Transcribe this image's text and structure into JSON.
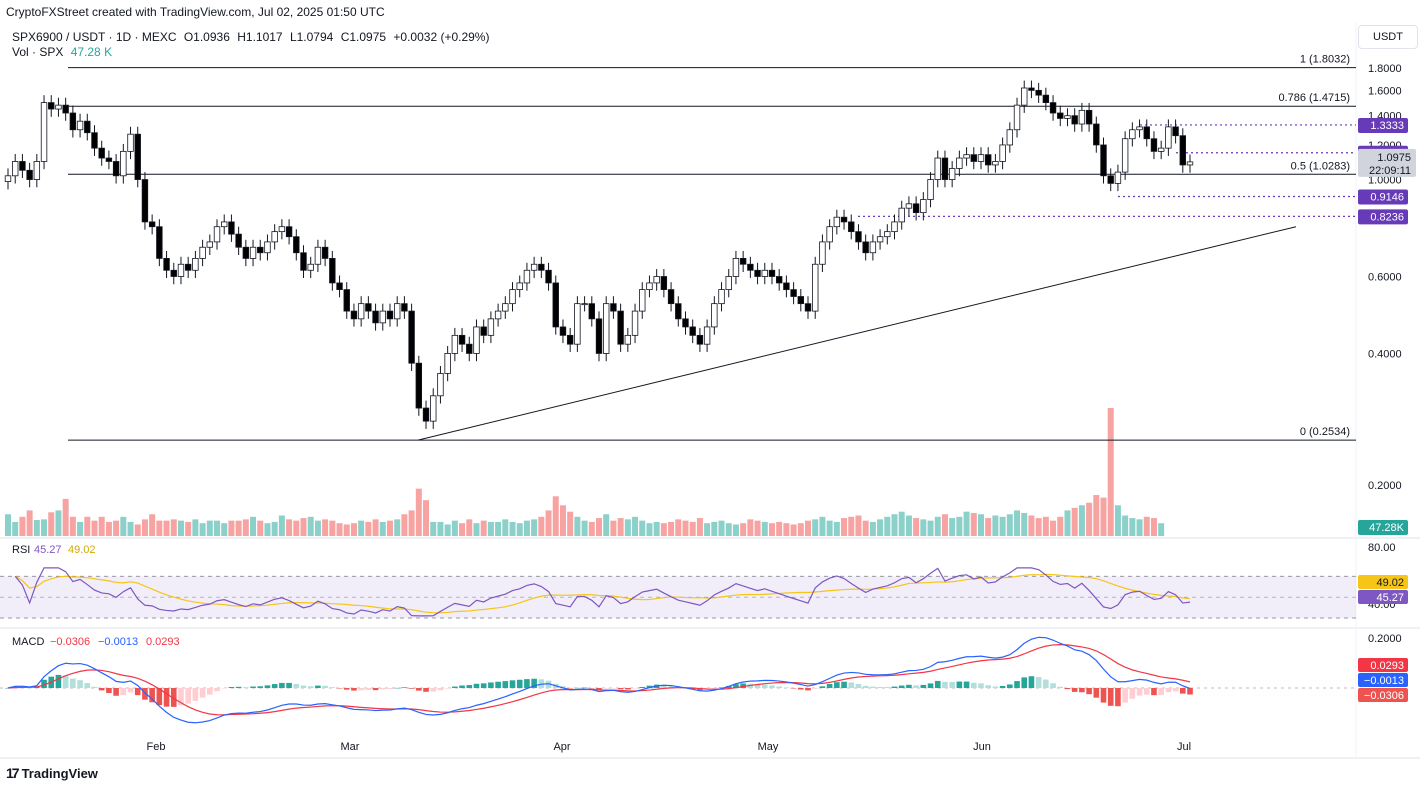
{
  "credit": "CryptoFXStreet created with TradingView.com, Jul 02, 2025 01:50 UTC",
  "symbol_line": {
    "symbol": "SPX6900 / USDT · 1D · MEXC",
    "open": "O1.0936",
    "high": "H1.1017",
    "low": "L1.0794",
    "close": "C1.0975",
    "change": "+0.0032 (+0.29%)"
  },
  "vol_line": {
    "label": "Vol · SPX",
    "value": "47.28 K"
  },
  "unit": "USDT",
  "brand": "TradingView",
  "colors": {
    "up": "#26a69a",
    "down": "#ef5350",
    "candle_up": "#ffffff",
    "candle_down": "#000000",
    "level": "#673ab7",
    "rsi": "#7e57c2",
    "rsi_ma": "#f5c518",
    "macd": "#2962ff",
    "signal": "#f23645"
  },
  "chart_data": [
    {
      "type": "candlestick",
      "title": "SPX6900 / USDT · 1D · MEXC",
      "y_ticks": [
        "1.8000",
        "1.6000",
        "1.4000",
        "1.2000",
        "1.0000",
        "0.6000",
        "0.4000",
        "0.2000"
      ],
      "x_ticks": [
        "Feb",
        "Mar",
        "Apr",
        "May",
        "Jun",
        "Jul"
      ],
      "fib_levels": [
        {
          "label": "1 (1.8032)",
          "value": 1.8032
        },
        {
          "label": "0.786 (1.4715)",
          "value": 1.4715
        },
        {
          "label": "0.5 (1.0283)",
          "value": 1.0283
        },
        {
          "label": "0 (0.2534)",
          "value": 0.2534
        }
      ],
      "price_markers": [
        "1.3333",
        "1.1516",
        "0.9146",
        "0.8236"
      ],
      "price_marker_values": [
        1.3333,
        1.1516,
        0.9146,
        0.8236
      ],
      "last_price": "1.0975",
      "countdown": "22:09:11",
      "trendline": [
        {
          "date": "2025-03-09",
          "price": 0.2534
        },
        {
          "date": "2025-07-10",
          "price": 0.78
        }
      ],
      "series": [
        {
          "name": "SPX6900 / USDT",
          "close": [
            1.02,
            1.1,
            1.05,
            1.0,
            1.1,
            1.5,
            1.45,
            1.48,
            1.42,
            1.3,
            1.36,
            1.28,
            1.18,
            1.12,
            1.1,
            1.02,
            1.16,
            1.27,
            1.0,
            0.8,
            0.78,
            0.66,
            0.62,
            0.6,
            0.64,
            0.62,
            0.66,
            0.7,
            0.72,
            0.78,
            0.8,
            0.75,
            0.7,
            0.66,
            0.7,
            0.68,
            0.72,
            0.76,
            0.78,
            0.74,
            0.68,
            0.62,
            0.64,
            0.7,
            0.66,
            0.58,
            0.56,
            0.5,
            0.48,
            0.52,
            0.5,
            0.47,
            0.5,
            0.48,
            0.52,
            0.5,
            0.38,
            0.3,
            0.28,
            0.32,
            0.36,
            0.4,
            0.44,
            0.42,
            0.4,
            0.46,
            0.44,
            0.48,
            0.5,
            0.52,
            0.56,
            0.58,
            0.62,
            0.64,
            0.62,
            0.58,
            0.46,
            0.44,
            0.42,
            0.52,
            0.52,
            0.48,
            0.4,
            0.52,
            0.5,
            0.42,
            0.44,
            0.5,
            0.56,
            0.58,
            0.6,
            0.56,
            0.52,
            0.48,
            0.46,
            0.44,
            0.42,
            0.46,
            0.52,
            0.56,
            0.6,
            0.66,
            0.64,
            0.62,
            0.6,
            0.62,
            0.6,
            0.58,
            0.56,
            0.54,
            0.52,
            0.5,
            0.64,
            0.72,
            0.78,
            0.82,
            0.8,
            0.76,
            0.72,
            0.68,
            0.72,
            0.74,
            0.76,
            0.8,
            0.86,
            0.88,
            0.84,
            0.9,
            1.0,
            1.12,
            1.0,
            1.06,
            1.12,
            1.14,
            1.1,
            1.14,
            1.08,
            1.1,
            1.2,
            1.3,
            1.48,
            1.62,
            1.6,
            1.56,
            1.5,
            1.42,
            1.38,
            1.4,
            1.34,
            1.44,
            1.34,
            1.2,
            1.02,
            0.98,
            1.04,
            1.24,
            1.3,
            1.32,
            1.24,
            1.16,
            1.18,
            1.32,
            1.26,
            1.08,
            1.0975
          ]
        }
      ]
    },
    {
      "type": "bar",
      "title": "Vol · SPX",
      "last_value": "47.28K",
      "series": [
        {
          "name": "Vol · SPX",
          "values": [
            34,
            22,
            30,
            40,
            25,
            26,
            37,
            40,
            58,
            30,
            22,
            30,
            24,
            30,
            22,
            24,
            30,
            22,
            18,
            26,
            34,
            24,
            24,
            26,
            24,
            22,
            26,
            20,
            24,
            24,
            20,
            24,
            24,
            26,
            30,
            24,
            20,
            22,
            32,
            26,
            24,
            28,
            30,
            24,
            26,
            24,
            20,
            18,
            20,
            24,
            22,
            26,
            22,
            24,
            26,
            34,
            40,
            74,
            56,
            22,
            22,
            18,
            24,
            20,
            26,
            20,
            24,
            22,
            22,
            26,
            22,
            20,
            24,
            26,
            30,
            40,
            62,
            48,
            38,
            30,
            24,
            22,
            28,
            34,
            24,
            28,
            26,
            30,
            24,
            20,
            22,
            20,
            22,
            26,
            24,
            22,
            28,
            20,
            22,
            24,
            20,
            18,
            20,
            26,
            24,
            22,
            20,
            22,
            20,
            18,
            20,
            24,
            26,
            30,
            24,
            22,
            28,
            30,
            32,
            24,
            22,
            26,
            30,
            34,
            38,
            32,
            28,
            26,
            24,
            30,
            34,
            28,
            30,
            38,
            36,
            34,
            28,
            32,
            30,
            34,
            40,
            36,
            32,
            28,
            30,
            24,
            30,
            40,
            44,
            48,
            52,
            64,
            60,
            200,
            48,
            32,
            28,
            26,
            30,
            28,
            20
          ]
        }
      ]
    },
    {
      "type": "line",
      "title": "RSI",
      "y_ticks": [
        "80.00",
        "40.00"
      ],
      "legend": {
        "rsi": "45.27",
        "ma": "49.02"
      },
      "series": [
        {
          "name": "RSI",
          "last": 45.27
        },
        {
          "name": "MA",
          "last": 49.02
        }
      ]
    },
    {
      "type": "line",
      "title": "MACD",
      "y_ticks": [
        "0.2000"
      ],
      "legend": {
        "hist": "−0.0306",
        "macd": "−0.0013",
        "signal": "0.0293"
      },
      "series": [
        {
          "name": "MACD",
          "last": -0.0013
        },
        {
          "name": "Signal",
          "last": 0.0293
        },
        {
          "name": "Histogram",
          "last": -0.0306
        }
      ]
    }
  ]
}
